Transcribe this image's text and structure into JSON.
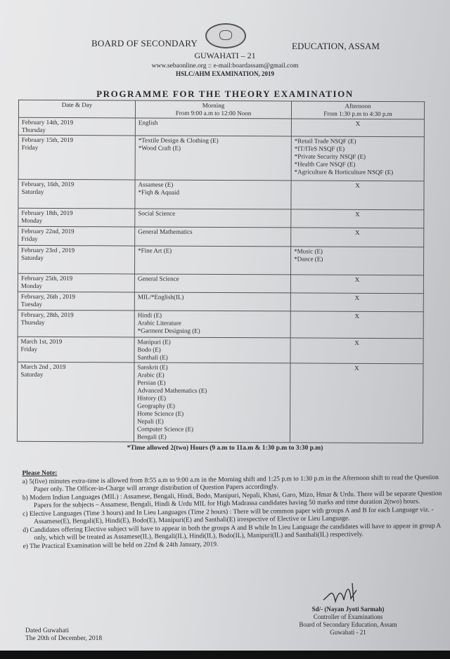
{
  "header": {
    "left": "BOARD OF SECONDARY",
    "right": "EDUCATION, ASSAM",
    "city": "GUWAHATI – 21",
    "web": "www.sebaonline.org :: e-mail:boardassam@gmail.com",
    "exam": "HSLC/AHM EXAMINATION, 2019",
    "title": "PROGRAMME FOR THE THEORY EXAMINATION"
  },
  "table": {
    "columns": [
      {
        "label": "Date & Day",
        "sub": ""
      },
      {
        "label": "Morning",
        "sub": "From 9:00 a.m to 12:00 Noon"
      },
      {
        "label": "Afternoon",
        "sub": "From 1:30 p.m to 4:30 p.m"
      }
    ],
    "rows": [
      {
        "date": "February 14th, 2019",
        "day": "Thursday",
        "morning": [
          "English"
        ],
        "afternoon": [
          "X"
        ],
        "h": 25
      },
      {
        "date": "February 15th, 2019",
        "day": "Friday",
        "morning": [
          "*Textile Design & Clothing (E)",
          "*Wood Craft (E)"
        ],
        "afternoon": [
          "*Retail Trade NSQF (E)",
          "*IT/ITeS NSQF (E)",
          "*Private Security NSQF (E)",
          "*Health Care NSQF (E)",
          "*Agriculture & Horticulture NSQF (E)"
        ],
        "h": 63
      },
      {
        "date": "February, 16th, 2019",
        "day": "Saturday",
        "morning": [
          "Assamese (E)",
          "*Fiqh & Aquaid"
        ],
        "afternoon": [
          "X"
        ],
        "h": 41
      },
      {
        "date": "February 18th, 2019",
        "day": "Monday",
        "morning": [
          "Social Science"
        ],
        "afternoon": [
          "X"
        ],
        "h": 26
      },
      {
        "date": "February 22nd, 2019",
        "day": "Friday",
        "morning": [
          "General Mathematics"
        ],
        "afternoon": [
          "X"
        ],
        "h": 27
      },
      {
        "date": "February 23rd , 2019",
        "day": "Saturday",
        "morning": [
          "*Fine Art (E)"
        ],
        "afternoon": [
          "*Music (E)",
          "*Dance (E)"
        ],
        "h": 40
      },
      {
        "date": "February 25th, 2019",
        "day": "Monday",
        "morning": [
          "General Science"
        ],
        "afternoon": [
          "X"
        ],
        "h": 26
      },
      {
        "date": "February, 26th , 2019",
        "day": "Tuesday",
        "morning": [
          "MIL/*English(IL)"
        ],
        "afternoon": [
          "X"
        ],
        "h": 26
      },
      {
        "date": "February, 28th, 2019",
        "day": "Thursday",
        "morning": [
          "Hindi (E)",
          "Arabic Literature",
          "*Garment Designing (E)"
        ],
        "afternoon": [
          "X"
        ],
        "h": 38
      },
      {
        "date": "March 1st, 2019",
        "day": "Friday",
        "morning": [
          "Manipuri (E)",
          "Bodo (E)",
          "Santhali (E)"
        ],
        "afternoon": [
          "X"
        ],
        "h": 34
      },
      {
        "date": "March 2nd , 2019",
        "day": "Saturday",
        "morning": [
          "Sanskrit (E)",
          "Arabic (E)",
          "Persian (E)",
          "Advanced Mathematics (E)",
          "History (E)",
          "Geography (E)",
          "Home Science (E)",
          "Nepali (E)",
          "Computer Science (E)",
          "Bengali (E)"
        ],
        "afternoon": [
          "X"
        ],
        "h": 112
      }
    ]
  },
  "time_allowed": "*Time allowed 2(two) Hours (9 a.m to 11a.m & 1:30 p.m to 3:30 p.m)",
  "notes": {
    "heading": "Please Note:",
    "items": [
      "a)  5(five) minutes extra-time is allowed from 8:55 a.m to 9:00 a.m in the Morning shift and 1:25 p.m to 1:30 p.m in the Afternoon shift to read the Question Paper only. The Officer-in-Charge will arrange distribution of Question Papers accordingly.",
      "b)  Modern Indian Languages (MIL) : Assamese, Bengali, Hindi, Bodo, Manipuri, Nepali, Khasi, Garo, Mizo, Hmar & Urdu. There will be separate Question Papers for the subjects – Assamese, Bengali, Hindi & Urdu MIL for High Madrassa candidates having 50 marks and time duration 2(two) hours.",
      "c)  Elective Languages (Time 3 hours) and In Lieu Languages (Time 2 hours) : There will be common paper with groups A and B for each Language viz. - Assamese(E), Bengali(E), Hindi(E), Bodo(E), Manipuri(E) and Santhali(E) irrespective of Elective or Lieu Language.",
      "d)  Candidates offering Elective subject will have to appear in both the groups A and B while In Lieu Language the candidates will have to appear in group A only, which will be treated as Assamese(IL), Bengali(IL), Hindi(IL), Bodo(IL), Manipuri(IL) and Santhali(IL) respectively.",
      "e)  The Practical Examination will be held on 22nd & 24th January, 2019."
    ]
  },
  "signature": {
    "name": "Sd/- (Nayan Jyoti Sarmah)",
    "title": "Controller of Examinations",
    "org": "Board of Secondary Education, Assam",
    "place": "Guwahati - 21"
  },
  "dated": {
    "line1": "Dated Guwahati",
    "line2": "The 20th of December, 2018"
  }
}
